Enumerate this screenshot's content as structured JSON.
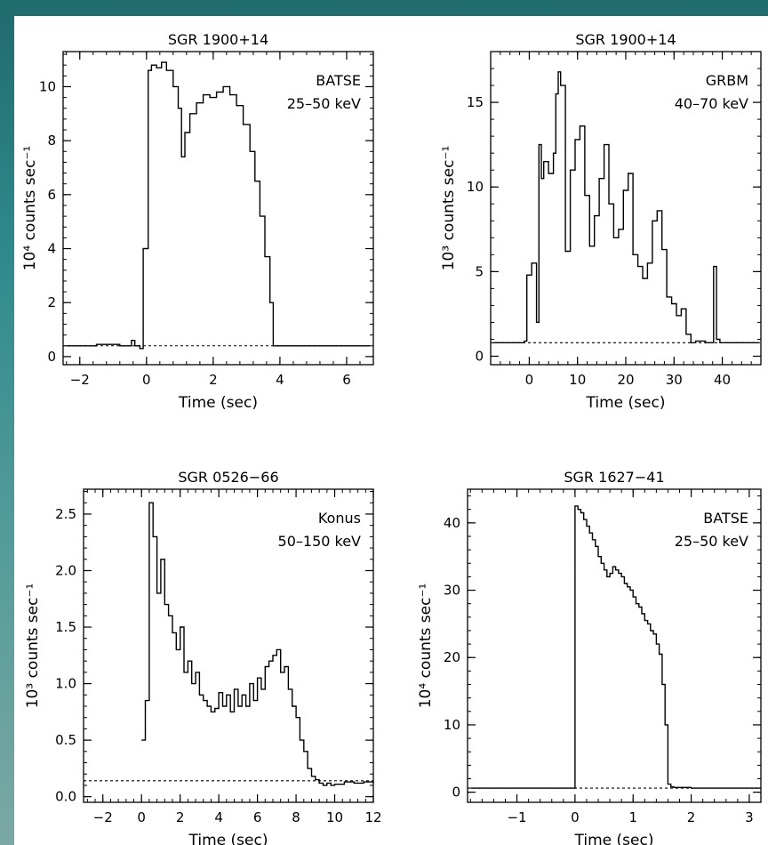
{
  "colors": {
    "background": "#2f8a8c",
    "panel": "#ffffff",
    "ink": "#000000"
  },
  "chart_data": [
    {
      "type": "line",
      "title": "SGR 1900+14",
      "annotation": [
        "BATSE",
        "25–50 keV"
      ],
      "xlabel": "Time (sec)",
      "ylabel": "10⁴ counts sec⁻¹",
      "xlim": [
        -2.5,
        6.8
      ],
      "ylim": [
        -0.3,
        11.3
      ],
      "xticks": [
        -2,
        0,
        2,
        4,
        6
      ],
      "xtick_labels": [
        "−2",
        "0",
        "2",
        "4",
        "6"
      ],
      "yticks": [
        0,
        2,
        4,
        6,
        8,
        10
      ],
      "ytick_labels": [
        "0",
        "2",
        "4",
        "6",
        "8",
        "10"
      ],
      "background_level": 0.4,
      "step": true,
      "x": [
        -2.4,
        -1.5,
        -0.8,
        -0.45,
        -0.35,
        -0.2,
        -0.1,
        0.05,
        0.15,
        0.3,
        0.45,
        0.6,
        0.8,
        0.95,
        1.05,
        1.15,
        1.3,
        1.5,
        1.7,
        1.9,
        2.1,
        2.3,
        2.5,
        2.7,
        2.9,
        3.1,
        3.25,
        3.4,
        3.55,
        3.7,
        3.8,
        3.9,
        4.2,
        5.0,
        6.0,
        6.7
      ],
      "y": [
        0.4,
        0.45,
        0.4,
        0.6,
        0.4,
        0.3,
        4.0,
        10.6,
        10.8,
        10.7,
        10.9,
        10.6,
        10.0,
        9.2,
        7.4,
        8.3,
        9.0,
        9.4,
        9.7,
        9.6,
        9.8,
        10.0,
        9.7,
        9.3,
        8.6,
        7.6,
        6.5,
        5.2,
        3.7,
        2.0,
        0.4,
        0.4,
        0.4,
        0.4,
        0.4,
        0.4
      ]
    },
    {
      "type": "line",
      "title": "SGR 1900+14",
      "annotation": [
        "GRBM",
        "40–70 keV"
      ],
      "xlabel": "Time (sec)",
      "ylabel": "10³ counts sec⁻¹",
      "xlim": [
        -8,
        48
      ],
      "ylim": [
        -0.5,
        18
      ],
      "xticks": [
        0,
        10,
        20,
        30,
        40
      ],
      "xtick_labels": [
        "0",
        "10",
        "20",
        "30",
        "40"
      ],
      "yticks": [
        0,
        5,
        10,
        15
      ],
      "ytick_labels": [
        "0",
        "5",
        "10",
        "15"
      ],
      "background_level": 0.8,
      "step": true,
      "x": [
        -7.5,
        -3,
        -1,
        -0.5,
        0.5,
        1.5,
        2,
        2.5,
        3,
        4,
        5,
        5.5,
        6,
        6.5,
        7.5,
        8.5,
        9.5,
        10.5,
        11.5,
        12.5,
        13.5,
        14.5,
        15.5,
        16.5,
        17.5,
        18.5,
        19.5,
        20.5,
        21.5,
        22.5,
        23.5,
        24.5,
        25.5,
        26.5,
        27.5,
        28.5,
        29.5,
        30.5,
        31.5,
        32.5,
        33.5,
        34.5,
        36.5,
        37.5,
        38.2,
        38.8,
        39.5,
        47.5
      ],
      "y": [
        0.8,
        0.8,
        0.9,
        4.8,
        5.5,
        2.0,
        12.5,
        10.5,
        11.5,
        10.8,
        12.0,
        15.5,
        16.8,
        16.0,
        6.2,
        11.0,
        12.8,
        13.6,
        9.5,
        6.5,
        8.3,
        10.5,
        12.5,
        9.0,
        7.0,
        7.5,
        9.8,
        10.8,
        6.0,
        5.3,
        4.6,
        5.5,
        8.0,
        8.6,
        6.3,
        3.5,
        3.1,
        2.4,
        2.8,
        1.3,
        0.8,
        0.9,
        0.8,
        0.8,
        5.3,
        1.0,
        0.8,
        0.8
      ]
    },
    {
      "type": "line",
      "title": "SGR 0526−66",
      "annotation": [
        "Konus",
        "50–150 keV"
      ],
      "xlabel": "Time (sec)",
      "ylabel": "10³ counts sec⁻¹",
      "xlim": [
        -3,
        12
      ],
      "ylim": [
        -0.05,
        2.72
      ],
      "xticks": [
        -2,
        0,
        2,
        4,
        6,
        8,
        10,
        12
      ],
      "xtick_labels": [
        "−2",
        "0",
        "2",
        "4",
        "6",
        "8",
        "10",
        "12"
      ],
      "yticks": [
        0.0,
        0.5,
        1.0,
        1.5,
        2.0,
        2.5
      ],
      "ytick_labels": [
        "0.0",
        "0.5",
        "1.0",
        "1.5",
        "2.0",
        "2.5"
      ],
      "background_level": 0.14,
      "step": true,
      "x": [
        0.0,
        0.2,
        0.4,
        0.6,
        0.8,
        1.0,
        1.2,
        1.4,
        1.6,
        1.8,
        2.0,
        2.2,
        2.4,
        2.6,
        2.8,
        3.0,
        3.2,
        3.4,
        3.6,
        3.8,
        4.0,
        4.2,
        4.4,
        4.6,
        4.8,
        5.0,
        5.2,
        5.4,
        5.6,
        5.8,
        6.0,
        6.2,
        6.4,
        6.6,
        6.8,
        7.0,
        7.2,
        7.4,
        7.6,
        7.8,
        8.0,
        8.2,
        8.4,
        8.6,
        8.8,
        9.0,
        9.2,
        9.4,
        9.6,
        9.8,
        10.0,
        10.5,
        11.0,
        11.5,
        12.0
      ],
      "y": [
        0.5,
        0.85,
        2.6,
        2.3,
        1.8,
        2.1,
        1.7,
        1.6,
        1.45,
        1.3,
        1.5,
        1.1,
        1.2,
        1.0,
        1.1,
        0.9,
        0.85,
        0.8,
        0.75,
        0.78,
        0.92,
        0.8,
        0.9,
        0.75,
        0.95,
        0.8,
        0.9,
        0.8,
        1.0,
        0.85,
        1.05,
        0.95,
        1.15,
        1.2,
        1.25,
        1.3,
        1.1,
        1.15,
        0.95,
        0.8,
        0.7,
        0.5,
        0.4,
        0.25,
        0.18,
        0.15,
        0.12,
        0.1,
        0.12,
        0.1,
        0.11,
        0.13,
        0.12,
        0.13,
        0.12
      ]
    },
    {
      "type": "line",
      "title": "SGR 1627−41",
      "annotation": [
        "BATSE",
        "25–50 keV"
      ],
      "xlabel": "Time (sec)",
      "ylabel": "10⁴ counts sec⁻¹",
      "xlim": [
        -1.85,
        3.2
      ],
      "ylim": [
        -1.5,
        45
      ],
      "xticks": [
        -1,
        0,
        1,
        2,
        3
      ],
      "xtick_labels": [
        "−1",
        "0",
        "1",
        "2",
        "3"
      ],
      "yticks": [
        0,
        10,
        20,
        30,
        40
      ],
      "ytick_labels": [
        "0",
        "10",
        "20",
        "30",
        "40"
      ],
      "background_level": 0.6,
      "step": true,
      "x": [
        -1.8,
        -0.2,
        0.0,
        0.05,
        0.1,
        0.15,
        0.2,
        0.25,
        0.3,
        0.35,
        0.4,
        0.45,
        0.5,
        0.55,
        0.6,
        0.65,
        0.7,
        0.75,
        0.8,
        0.85,
        0.9,
        0.95,
        1.0,
        1.05,
        1.1,
        1.15,
        1.2,
        1.25,
        1.3,
        1.35,
        1.4,
        1.45,
        1.5,
        1.55,
        1.6,
        1.65,
        1.7,
        2.0,
        2.5,
        3.0,
        3.2
      ],
      "y": [
        0.6,
        0.6,
        42.5,
        42.0,
        41.5,
        40.5,
        39.5,
        38.5,
        37.5,
        36.5,
        35.0,
        34.0,
        33.0,
        32.0,
        32.5,
        33.5,
        33.0,
        32.5,
        32.0,
        31.0,
        30.5,
        30.0,
        29.0,
        28.0,
        27.5,
        26.5,
        25.5,
        25.0,
        24.0,
        23.5,
        22.0,
        20.5,
        16.0,
        10.0,
        1.2,
        0.8,
        0.7,
        0.6,
        0.6,
        0.6,
        0.6
      ]
    }
  ]
}
